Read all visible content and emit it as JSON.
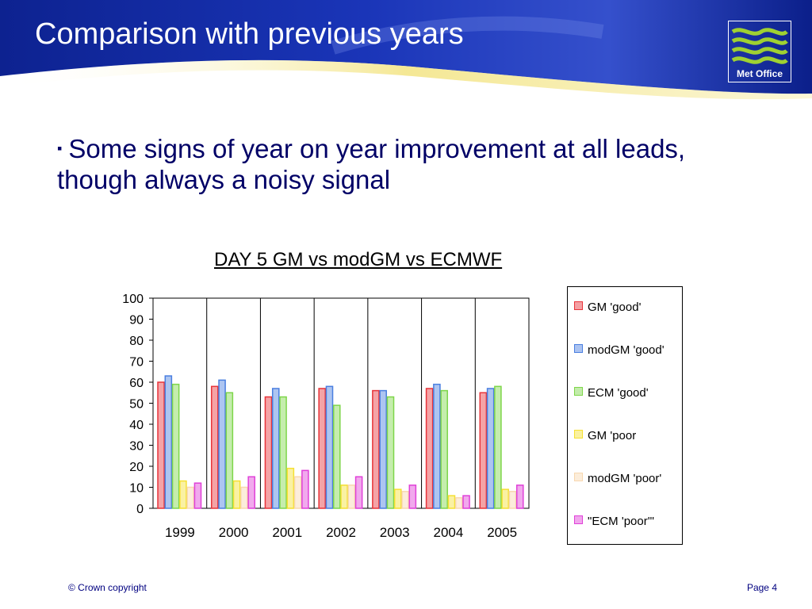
{
  "slide": {
    "title": "Comparison with previous years",
    "bullet": "Some signs of year on year improvement at all leads, though always a noisy signal",
    "logo_text": "Met Office",
    "footer_left": "© Crown copyright",
    "footer_right": "Page 4"
  },
  "colors": {
    "header_dark": "#0b1f8a",
    "header_light": "#4a63d6",
    "swoosh": "#f2e27a",
    "logo_green": "#9fd132",
    "bullet_text": "#000066"
  },
  "chart_data": {
    "type": "bar",
    "title": "DAY 5 GM vs modGM vs ECMWF",
    "xlabel": "",
    "ylabel": "",
    "categories": [
      "1999",
      "2000",
      "2001",
      "2002",
      "2003",
      "2004",
      "2005"
    ],
    "ylim": [
      0,
      100
    ],
    "yticks": [
      0,
      10,
      20,
      30,
      40,
      50,
      60,
      70,
      80,
      90,
      100
    ],
    "grid": "vertical",
    "legend_position": "right",
    "series": [
      {
        "name": "GM 'good'",
        "color": "#e8343a",
        "values": [
          60,
          58,
          53,
          57,
          56,
          57,
          55
        ]
      },
      {
        "name": "modGM 'good'",
        "color": "#4a7fe0",
        "values": [
          63,
          61,
          57,
          58,
          56,
          59,
          57
        ]
      },
      {
        "name": "ECM 'good'",
        "color": "#7ed64a",
        "values": [
          59,
          55,
          53,
          49,
          53,
          56,
          58
        ]
      },
      {
        "name": "GM 'poor",
        "color": "#f5e032",
        "values": [
          13,
          13,
          19,
          11,
          9,
          6,
          9
        ]
      },
      {
        "name": "modGM 'poor'",
        "color": "#f8d8b0",
        "values": [
          10,
          10,
          15,
          11,
          8,
          5,
          8
        ]
      },
      {
        "name": "\"ECM 'poor'\"",
        "color": "#e040d8",
        "values": [
          12,
          15,
          18,
          15,
          11,
          6,
          11
        ]
      }
    ]
  }
}
